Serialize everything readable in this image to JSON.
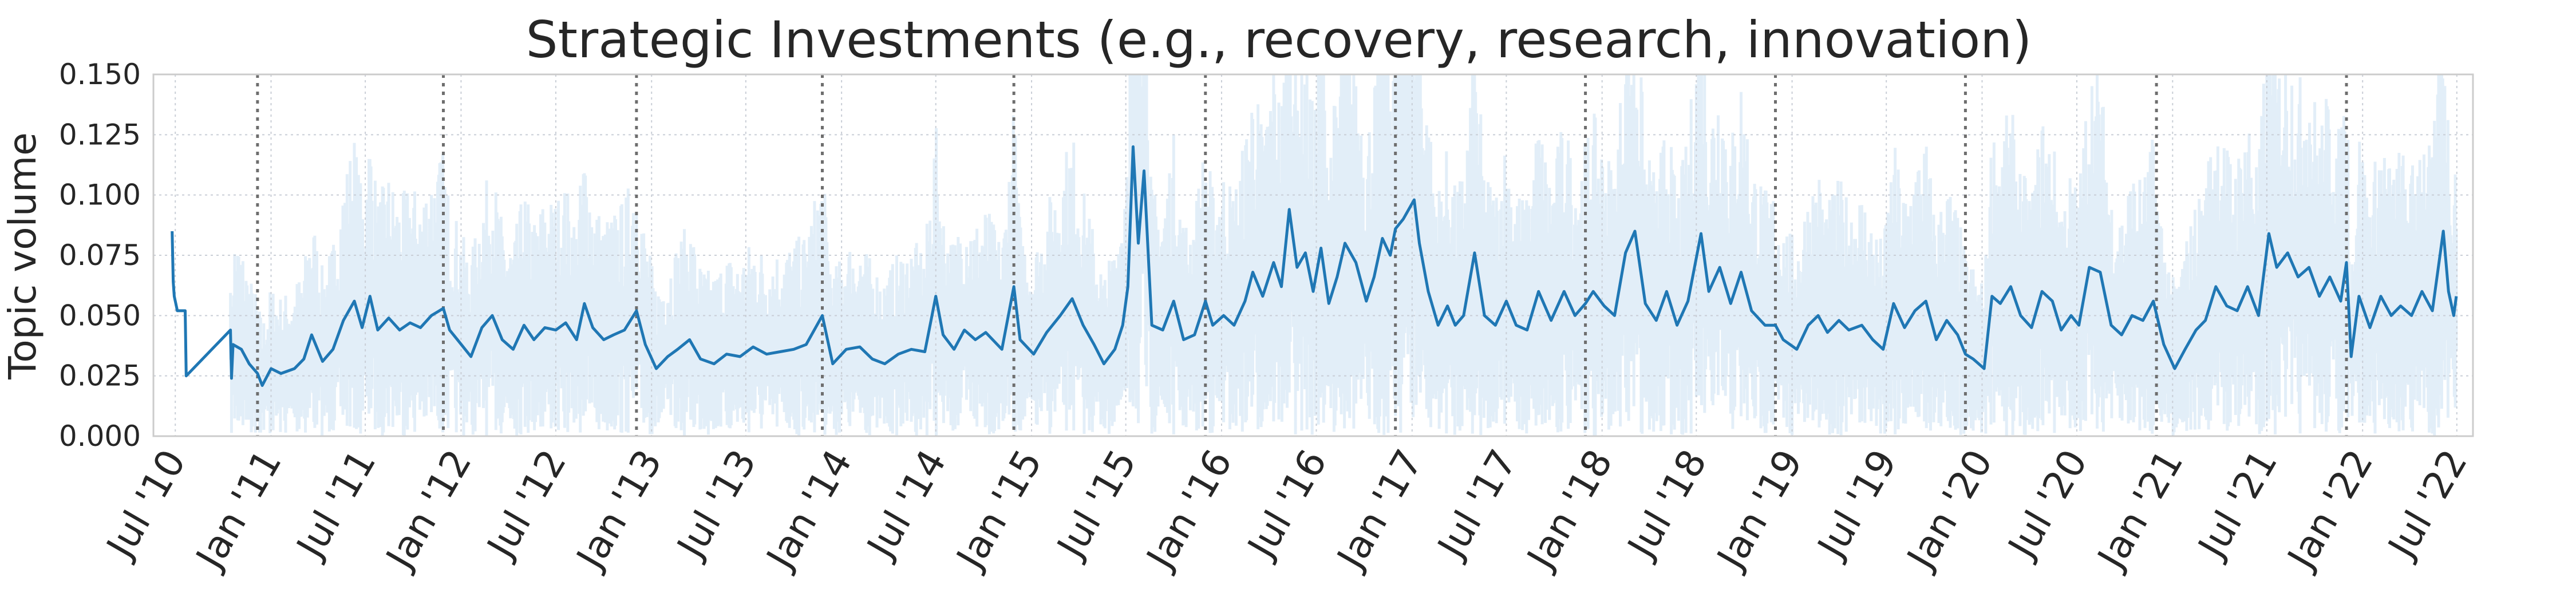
{
  "chart_data": {
    "type": "line",
    "title": "Strategic Investments (e.g., recovery, research, innovation)",
    "xlabel": "",
    "ylabel": "Topic volume",
    "ylim": [
      0,
      0.15
    ],
    "xlim": [
      "2010-05-20",
      "2022-08-01"
    ],
    "yticks": [
      0.0,
      0.025,
      0.05,
      0.075,
      0.1,
      0.125,
      0.15
    ],
    "ytick_labels": [
      "0.000",
      "0.025",
      "0.050",
      "0.075",
      "0.100",
      "0.125",
      "0.150"
    ],
    "xticks": [
      "2010-07-01",
      "2011-01-01",
      "2011-07-01",
      "2012-01-01",
      "2012-07-01",
      "2013-01-01",
      "2013-07-01",
      "2014-01-01",
      "2014-07-01",
      "2015-01-01",
      "2015-07-01",
      "2016-01-01",
      "2016-07-01",
      "2017-01-01",
      "2017-07-01",
      "2018-01-01",
      "2018-07-01",
      "2019-01-01",
      "2019-07-01",
      "2020-01-01",
      "2020-07-01",
      "2021-01-01",
      "2021-07-01",
      "2022-01-01",
      "2022-07-01"
    ],
    "xtick_labels": [
      "Jul '10",
      "Jan '11",
      "Jul '11",
      "Jan '12",
      "Jul '12",
      "Jan '13",
      "Jul '13",
      "Jan '14",
      "Jul '14",
      "Jan '15",
      "Jul '15",
      "Jan '16",
      "Jul '16",
      "Jan '17",
      "Jul '17",
      "Jan '18",
      "Jul '18",
      "Jan '19",
      "Jul '19",
      "Jan '20",
      "Jul '20",
      "Jan '21",
      "Jul '21",
      "Jan '22",
      "Jul '22"
    ],
    "vertical_markers": [
      "2010-12-06",
      "2011-11-28",
      "2012-12-03",
      "2013-11-25",
      "2014-11-28",
      "2015-12-01",
      "2016-11-30",
      "2017-11-30",
      "2018-11-30",
      "2019-11-30",
      "2020-12-01",
      "2021-12-01"
    ],
    "grid": true,
    "legend": "none",
    "series": [
      {
        "color": "#1f77b4",
        "band_color": "#cfe3f3",
        "points": [
          [
            "2010-06-25",
            0.085
          ],
          [
            "2010-06-27",
            0.064
          ],
          [
            "2010-06-29",
            0.058
          ],
          [
            "2010-07-05",
            0.052
          ],
          [
            "2010-07-20",
            0.052
          ],
          [
            "2010-07-22",
            0.025
          ],
          [
            "2010-10-15",
            0.044
          ],
          [
            "2010-10-17",
            0.024
          ],
          [
            "2010-10-20",
            0.038
          ],
          [
            "2010-11-05",
            0.036
          ],
          [
            "2010-11-20",
            0.03
          ],
          [
            "2010-12-06",
            0.026
          ],
          [
            "2010-12-15",
            0.021
          ],
          [
            "2011-01-01",
            0.028
          ],
          [
            "2011-01-20",
            0.026
          ],
          [
            "2011-02-15",
            0.028
          ],
          [
            "2011-03-05",
            0.032
          ],
          [
            "2011-03-20",
            0.042
          ],
          [
            "2011-04-10",
            0.031
          ],
          [
            "2011-04-30",
            0.036
          ],
          [
            "2011-05-20",
            0.048
          ],
          [
            "2011-06-10",
            0.056
          ],
          [
            "2011-06-25",
            0.045
          ],
          [
            "2011-07-10",
            0.058
          ],
          [
            "2011-07-25",
            0.044
          ],
          [
            "2011-08-15",
            0.049
          ],
          [
            "2011-09-05",
            0.044
          ],
          [
            "2011-09-25",
            0.047
          ],
          [
            "2011-10-15",
            0.045
          ],
          [
            "2011-11-05",
            0.05
          ],
          [
            "2011-11-28",
            0.053
          ],
          [
            "2011-12-10",
            0.044
          ],
          [
            "2011-12-25",
            0.04
          ],
          [
            "2012-01-20",
            0.033
          ],
          [
            "2012-02-10",
            0.045
          ],
          [
            "2012-03-01",
            0.05
          ],
          [
            "2012-03-20",
            0.04
          ],
          [
            "2012-04-10",
            0.036
          ],
          [
            "2012-05-01",
            0.046
          ],
          [
            "2012-05-20",
            0.04
          ],
          [
            "2012-06-10",
            0.045
          ],
          [
            "2012-07-01",
            0.044
          ],
          [
            "2012-07-20",
            0.047
          ],
          [
            "2012-08-10",
            0.04
          ],
          [
            "2012-08-25",
            0.055
          ],
          [
            "2012-09-10",
            0.045
          ],
          [
            "2012-10-01",
            0.04
          ],
          [
            "2012-10-20",
            0.042
          ],
          [
            "2012-11-10",
            0.044
          ],
          [
            "2012-12-03",
            0.052
          ],
          [
            "2012-12-20",
            0.038
          ],
          [
            "2013-01-10",
            0.028
          ],
          [
            "2013-02-01",
            0.033
          ],
          [
            "2013-02-20",
            0.036
          ],
          [
            "2013-03-15",
            0.04
          ],
          [
            "2013-04-05",
            0.032
          ],
          [
            "2013-05-01",
            0.03
          ],
          [
            "2013-05-25",
            0.034
          ],
          [
            "2013-06-20",
            0.033
          ],
          [
            "2013-07-15",
            0.037
          ],
          [
            "2013-08-10",
            0.034
          ],
          [
            "2013-09-05",
            0.035
          ],
          [
            "2013-10-01",
            0.036
          ],
          [
            "2013-10-25",
            0.038
          ],
          [
            "2013-11-25",
            0.05
          ],
          [
            "2013-12-15",
            0.03
          ],
          [
            "2014-01-10",
            0.036
          ],
          [
            "2014-02-05",
            0.037
          ],
          [
            "2014-03-01",
            0.032
          ],
          [
            "2014-03-25",
            0.03
          ],
          [
            "2014-04-20",
            0.034
          ],
          [
            "2014-05-15",
            0.036
          ],
          [
            "2014-06-10",
            0.035
          ],
          [
            "2014-07-01",
            0.058
          ],
          [
            "2014-07-15",
            0.042
          ],
          [
            "2014-08-05",
            0.036
          ],
          [
            "2014-08-25",
            0.044
          ],
          [
            "2014-09-15",
            0.04
          ],
          [
            "2014-10-05",
            0.043
          ],
          [
            "2014-11-05",
            0.036
          ],
          [
            "2014-11-28",
            0.062
          ],
          [
            "2014-12-10",
            0.04
          ],
          [
            "2015-01-05",
            0.034
          ],
          [
            "2015-01-30",
            0.043
          ],
          [
            "2015-02-25",
            0.05
          ],
          [
            "2015-03-20",
            0.057
          ],
          [
            "2015-04-10",
            0.046
          ],
          [
            "2015-05-01",
            0.038
          ],
          [
            "2015-05-20",
            0.03
          ],
          [
            "2015-06-10",
            0.036
          ],
          [
            "2015-06-25",
            0.046
          ],
          [
            "2015-07-05",
            0.062
          ],
          [
            "2015-07-15",
            0.12
          ],
          [
            "2015-07-25",
            0.08
          ],
          [
            "2015-08-05",
            0.11
          ],
          [
            "2015-08-20",
            0.046
          ],
          [
            "2015-09-10",
            0.044
          ],
          [
            "2015-10-01",
            0.056
          ],
          [
            "2015-10-20",
            0.04
          ],
          [
            "2015-11-10",
            0.042
          ],
          [
            "2015-12-01",
            0.056
          ],
          [
            "2015-12-15",
            0.046
          ],
          [
            "2016-01-05",
            0.05
          ],
          [
            "2016-01-25",
            0.046
          ],
          [
            "2016-02-15",
            0.056
          ],
          [
            "2016-03-01",
            0.068
          ],
          [
            "2016-03-20",
            0.058
          ],
          [
            "2016-04-10",
            0.072
          ],
          [
            "2016-04-25",
            0.062
          ],
          [
            "2016-05-10",
            0.094
          ],
          [
            "2016-05-25",
            0.07
          ],
          [
            "2016-06-10",
            0.076
          ],
          [
            "2016-06-25",
            0.06
          ],
          [
            "2016-07-10",
            0.078
          ],
          [
            "2016-07-25",
            0.055
          ],
          [
            "2016-08-10",
            0.066
          ],
          [
            "2016-08-25",
            0.08
          ],
          [
            "2016-09-15",
            0.072
          ],
          [
            "2016-10-05",
            0.056
          ],
          [
            "2016-10-20",
            0.066
          ],
          [
            "2016-11-05",
            0.082
          ],
          [
            "2016-11-20",
            0.075
          ],
          [
            "2016-11-30",
            0.086
          ],
          [
            "2016-12-15",
            0.09
          ],
          [
            "2017-01-05",
            0.098
          ],
          [
            "2017-01-15",
            0.08
          ],
          [
            "2017-02-01",
            0.06
          ],
          [
            "2017-02-20",
            0.046
          ],
          [
            "2017-03-10",
            0.054
          ],
          [
            "2017-03-25",
            0.046
          ],
          [
            "2017-04-10",
            0.05
          ],
          [
            "2017-05-01",
            0.076
          ],
          [
            "2017-05-20",
            0.05
          ],
          [
            "2017-06-10",
            0.046
          ],
          [
            "2017-07-01",
            0.056
          ],
          [
            "2017-07-20",
            0.046
          ],
          [
            "2017-08-10",
            0.044
          ],
          [
            "2017-09-01",
            0.06
          ],
          [
            "2017-09-25",
            0.048
          ],
          [
            "2017-10-20",
            0.06
          ],
          [
            "2017-11-10",
            0.05
          ],
          [
            "2017-11-30",
            0.055
          ],
          [
            "2017-12-15",
            0.06
          ],
          [
            "2018-01-05",
            0.054
          ],
          [
            "2018-01-25",
            0.05
          ],
          [
            "2018-02-15",
            0.076
          ],
          [
            "2018-03-05",
            0.085
          ],
          [
            "2018-03-25",
            0.055
          ],
          [
            "2018-04-15",
            0.048
          ],
          [
            "2018-05-05",
            0.06
          ],
          [
            "2018-05-25",
            0.046
          ],
          [
            "2018-06-15",
            0.056
          ],
          [
            "2018-07-10",
            0.084
          ],
          [
            "2018-07-25",
            0.06
          ],
          [
            "2018-08-15",
            0.07
          ],
          [
            "2018-09-05",
            0.055
          ],
          [
            "2018-09-25",
            0.068
          ],
          [
            "2018-10-15",
            0.052
          ],
          [
            "2018-11-10",
            0.046
          ],
          [
            "2018-11-30",
            0.046
          ],
          [
            "2018-12-15",
            0.04
          ],
          [
            "2019-01-10",
            0.036
          ],
          [
            "2019-02-01",
            0.046
          ],
          [
            "2019-02-20",
            0.05
          ],
          [
            "2019-03-10",
            0.043
          ],
          [
            "2019-04-01",
            0.048
          ],
          [
            "2019-04-20",
            0.044
          ],
          [
            "2019-05-15",
            0.046
          ],
          [
            "2019-06-05",
            0.04
          ],
          [
            "2019-06-25",
            0.036
          ],
          [
            "2019-07-15",
            0.055
          ],
          [
            "2019-08-05",
            0.045
          ],
          [
            "2019-08-25",
            0.052
          ],
          [
            "2019-09-15",
            0.056
          ],
          [
            "2019-10-05",
            0.04
          ],
          [
            "2019-10-25",
            0.048
          ],
          [
            "2019-11-15",
            0.042
          ],
          [
            "2019-11-30",
            0.034
          ],
          [
            "2019-12-15",
            0.032
          ],
          [
            "2020-01-05",
            0.028
          ],
          [
            "2020-01-20",
            0.058
          ],
          [
            "2020-02-05",
            0.055
          ],
          [
            "2020-02-25",
            0.062
          ],
          [
            "2020-03-15",
            0.05
          ],
          [
            "2020-04-05",
            0.045
          ],
          [
            "2020-04-25",
            0.06
          ],
          [
            "2020-05-15",
            0.056
          ],
          [
            "2020-06-01",
            0.044
          ],
          [
            "2020-06-20",
            0.05
          ],
          [
            "2020-07-05",
            0.046
          ],
          [
            "2020-07-25",
            0.07
          ],
          [
            "2020-08-15",
            0.068
          ],
          [
            "2020-09-05",
            0.046
          ],
          [
            "2020-09-25",
            0.042
          ],
          [
            "2020-10-15",
            0.05
          ],
          [
            "2020-11-05",
            0.048
          ],
          [
            "2020-11-25",
            0.056
          ],
          [
            "2020-12-15",
            0.038
          ],
          [
            "2021-01-05",
            0.028
          ],
          [
            "2021-01-25",
            0.036
          ],
          [
            "2021-02-15",
            0.044
          ],
          [
            "2021-03-05",
            0.048
          ],
          [
            "2021-03-25",
            0.062
          ],
          [
            "2021-04-15",
            0.054
          ],
          [
            "2021-05-05",
            0.052
          ],
          [
            "2021-05-25",
            0.062
          ],
          [
            "2021-06-15",
            0.05
          ],
          [
            "2021-07-05",
            0.084
          ],
          [
            "2021-07-20",
            0.07
          ],
          [
            "2021-08-10",
            0.076
          ],
          [
            "2021-08-30",
            0.066
          ],
          [
            "2021-09-20",
            0.07
          ],
          [
            "2021-10-10",
            0.058
          ],
          [
            "2021-10-30",
            0.066
          ],
          [
            "2021-11-20",
            0.056
          ],
          [
            "2021-12-01",
            0.072
          ],
          [
            "2021-12-10",
            0.033
          ],
          [
            "2021-12-25",
            0.058
          ],
          [
            "2022-01-15",
            0.045
          ],
          [
            "2022-02-05",
            0.058
          ],
          [
            "2022-02-25",
            0.05
          ],
          [
            "2022-03-15",
            0.054
          ],
          [
            "2022-04-05",
            0.05
          ],
          [
            "2022-04-25",
            0.06
          ],
          [
            "2022-05-15",
            0.052
          ],
          [
            "2022-06-05",
            0.085
          ],
          [
            "2022-06-15",
            0.06
          ],
          [
            "2022-06-25",
            0.05
          ],
          [
            "2022-06-30",
            0.058
          ]
        ]
      }
    ]
  }
}
